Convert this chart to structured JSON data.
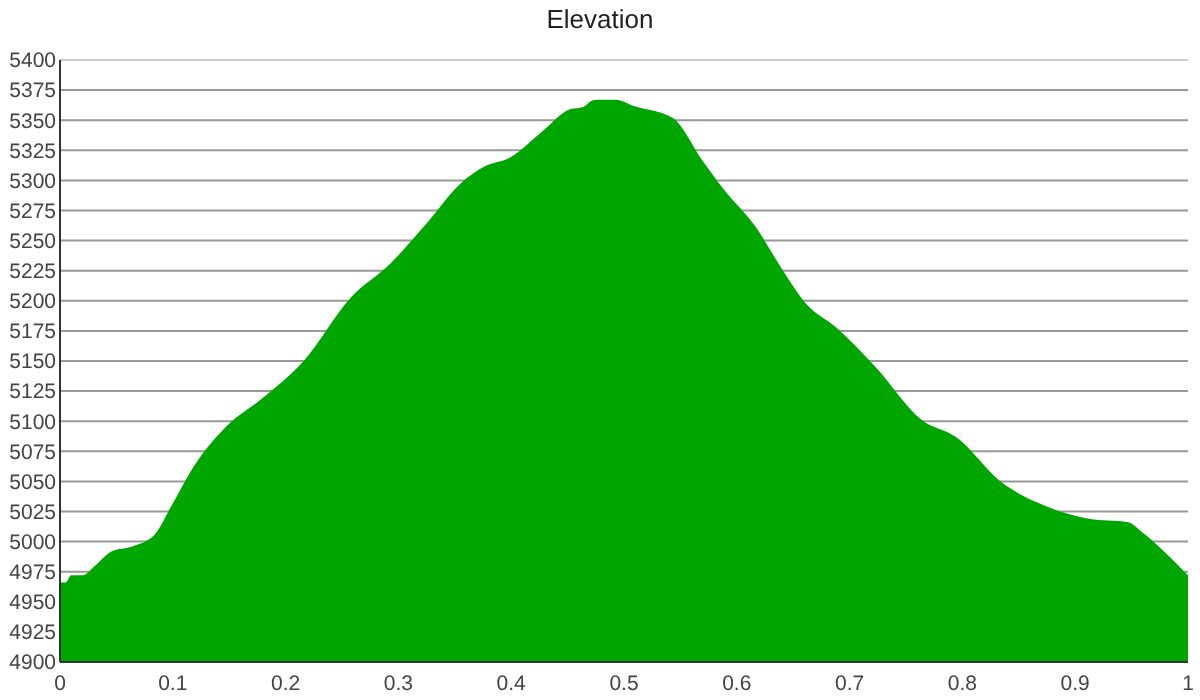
{
  "chart_data": {
    "type": "area",
    "title": "Elevation",
    "color": "#00a600",
    "x": [
      0,
      0.005,
      0.01,
      0.02,
      0.031,
      0.046,
      0.064,
      0.084,
      0.099,
      0.119,
      0.149,
      0.178,
      0.216,
      0.258,
      0.293,
      0.322,
      0.358,
      0.375,
      0.399,
      0.428,
      0.452,
      0.464,
      0.471,
      0.476,
      0.493,
      0.508,
      0.543,
      0.57,
      0.588,
      0.617,
      0.641,
      0.661,
      0.688,
      0.723,
      0.764,
      0.794,
      0.835,
      0.87,
      0.912,
      0.947,
      0.959,
      1
    ],
    "values": [
      4966,
      4966,
      4972,
      4972,
      4980,
      4992,
      4996,
      5006,
      5030,
      5063,
      5097,
      5118,
      5150,
      5203,
      5231,
      5261,
      5300,
      5311,
      5319,
      5341,
      5359,
      5361,
      5366,
      5367,
      5367,
      5362,
      5352,
      5316,
      5293,
      5261,
      5225,
      5198,
      5178,
      5145,
      5101,
      5087,
      5049,
      5031,
      5019,
      5016,
      5008,
      4972
    ],
    "xlim": [
      0,
      1
    ],
    "xticks": [
      0,
      0.1,
      0.2,
      0.3,
      0.4,
      0.5,
      0.6,
      0.7,
      0.8,
      0.9,
      1
    ],
    "ylim": [
      4900,
      5400
    ],
    "yticks": [
      4900,
      4925,
      4950,
      4975,
      5000,
      5025,
      5050,
      5075,
      5100,
      5125,
      5150,
      5175,
      5200,
      5225,
      5250,
      5275,
      5300,
      5325,
      5350,
      5375,
      5400
    ],
    "grid": "y"
  }
}
